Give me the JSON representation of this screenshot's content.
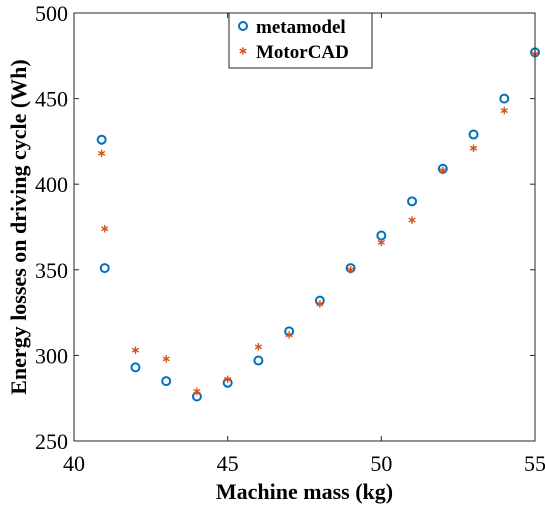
{
  "chart_data": {
    "type": "scatter",
    "xlabel": "Machine mass (kg)",
    "ylabel": "Energy losses on  driving cycle (Wh)",
    "xlim": [
      40,
      55
    ],
    "ylim": [
      250,
      500
    ],
    "xticks": [
      40,
      45,
      50,
      55
    ],
    "yticks": [
      250,
      300,
      350,
      400,
      450,
      500
    ],
    "x_tick_labels": [
      "40",
      "45",
      "50",
      "55"
    ],
    "y_tick_labels": [
      "250",
      "300",
      "350",
      "400",
      "450",
      "500"
    ],
    "grid": false,
    "legend_position": "top-center",
    "series": [
      {
        "name": "metamodel",
        "marker": "circle",
        "color": "#0072BD",
        "points": [
          {
            "x": 40.9,
            "y": 426
          },
          {
            "x": 41.0,
            "y": 351
          },
          {
            "x": 42,
            "y": 293
          },
          {
            "x": 43,
            "y": 285
          },
          {
            "x": 44,
            "y": 276
          },
          {
            "x": 45,
            "y": 284
          },
          {
            "x": 46,
            "y": 297
          },
          {
            "x": 47,
            "y": 314
          },
          {
            "x": 48,
            "y": 332
          },
          {
            "x": 49,
            "y": 351
          },
          {
            "x": 50,
            "y": 370
          },
          {
            "x": 51,
            "y": 390
          },
          {
            "x": 52,
            "y": 409
          },
          {
            "x": 53,
            "y": 429
          },
          {
            "x": 54,
            "y": 450
          },
          {
            "x": 55,
            "y": 477
          }
        ]
      },
      {
        "name": "MotorCAD",
        "marker": "asterisk",
        "color": "#D95319",
        "points": [
          {
            "x": 40.9,
            "y": 418
          },
          {
            "x": 41.0,
            "y": 374
          },
          {
            "x": 42,
            "y": 303
          },
          {
            "x": 43,
            "y": 298
          },
          {
            "x": 44,
            "y": 279
          },
          {
            "x": 45,
            "y": 286
          },
          {
            "x": 46,
            "y": 305
          },
          {
            "x": 47,
            "y": 312
          },
          {
            "x": 48,
            "y": 330
          },
          {
            "x": 49,
            "y": 350
          },
          {
            "x": 50,
            "y": 366
          },
          {
            "x": 51,
            "y": 379
          },
          {
            "x": 52,
            "y": 408
          },
          {
            "x": 53,
            "y": 421
          },
          {
            "x": 54,
            "y": 443
          },
          {
            "x": 55,
            "y": 476
          }
        ]
      }
    ]
  }
}
